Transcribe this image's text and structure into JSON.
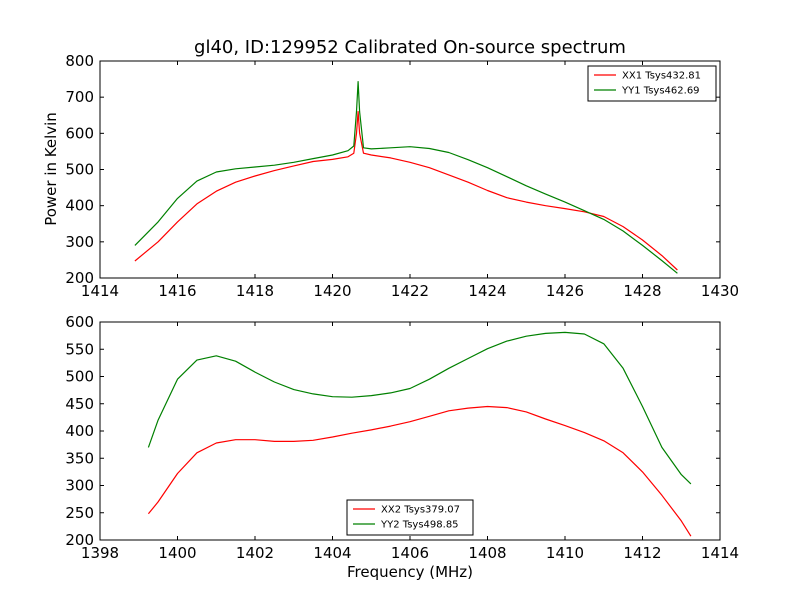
{
  "chart_data": [
    {
      "type": "line",
      "title": "gl40, ID:129952 Calibrated On-source spectrum",
      "xlabel": "",
      "ylabel": "Power in Kelvin",
      "xlim": [
        1414,
        1430
      ],
      "ylim": [
        200,
        800
      ],
      "xticks": [
        1414,
        1416,
        1418,
        1420,
        1422,
        1424,
        1426,
        1428,
        1430
      ],
      "yticks": [
        200,
        300,
        400,
        500,
        600,
        700,
        800
      ],
      "grid": false,
      "legend_position": "top-right",
      "series": [
        {
          "name": "XX1 Tsys432.81",
          "color": "#ff0000",
          "x": [
            1414.9,
            1415.5,
            1416.0,
            1416.5,
            1417.0,
            1417.5,
            1418.0,
            1418.5,
            1419.0,
            1419.5,
            1420.0,
            1420.4,
            1420.55,
            1420.62,
            1420.66,
            1420.7,
            1420.8,
            1421.0,
            1421.5,
            1422.0,
            1422.5,
            1423.0,
            1423.5,
            1424.0,
            1424.5,
            1425.0,
            1425.5,
            1426.0,
            1426.5,
            1427.0,
            1427.5,
            1428.0,
            1428.5,
            1428.9
          ],
          "y": [
            247,
            300,
            355,
            405,
            440,
            465,
            482,
            497,
            510,
            522,
            528,
            535,
            545,
            600,
            660,
            600,
            545,
            540,
            532,
            520,
            505,
            485,
            465,
            442,
            422,
            410,
            400,
            392,
            383,
            370,
            342,
            305,
            262,
            222
          ]
        },
        {
          "name": "YY1 Tsys462.69",
          "color": "#008000",
          "x": [
            1414.9,
            1415.5,
            1416.0,
            1416.5,
            1417.0,
            1417.5,
            1418.0,
            1418.5,
            1419.0,
            1419.5,
            1420.0,
            1420.4,
            1420.55,
            1420.62,
            1420.66,
            1420.7,
            1420.8,
            1421.0,
            1421.5,
            1422.0,
            1422.5,
            1423.0,
            1423.5,
            1424.0,
            1424.5,
            1425.0,
            1425.5,
            1426.0,
            1426.5,
            1427.0,
            1427.5,
            1428.0,
            1428.5,
            1428.9
          ],
          "y": [
            290,
            355,
            420,
            468,
            493,
            502,
            507,
            512,
            520,
            530,
            540,
            552,
            565,
            660,
            743,
            660,
            560,
            557,
            560,
            563,
            558,
            547,
            527,
            505,
            480,
            455,
            432,
            410,
            386,
            362,
            330,
            290,
            248,
            213
          ]
        }
      ]
    },
    {
      "type": "line",
      "title": "",
      "xlabel": "Frequency (MHz)",
      "ylabel": "",
      "xlim": [
        1398,
        1414
      ],
      "ylim": [
        200,
        600
      ],
      "xticks": [
        1398,
        1400,
        1402,
        1404,
        1406,
        1408,
        1410,
        1412,
        1414
      ],
      "yticks": [
        200,
        250,
        300,
        350,
        400,
        450,
        500,
        550,
        600
      ],
      "grid": false,
      "legend_position": "bottom-center",
      "series": [
        {
          "name": "XX2 Tsys379.07",
          "color": "#ff0000",
          "x": [
            1399.25,
            1399.5,
            1400.0,
            1400.5,
            1401.0,
            1401.5,
            1402.0,
            1402.5,
            1403.0,
            1403.5,
            1404.0,
            1404.5,
            1405.0,
            1405.5,
            1406.0,
            1406.5,
            1407.0,
            1407.5,
            1408.0,
            1408.5,
            1409.0,
            1409.5,
            1410.0,
            1410.5,
            1411.0,
            1411.5,
            1412.0,
            1412.5,
            1413.0,
            1413.25
          ],
          "y": [
            248,
            270,
            322,
            360,
            378,
            384,
            384,
            381,
            381,
            383,
            389,
            396,
            402,
            409,
            417,
            427,
            437,
            442,
            445,
            443,
            435,
            422,
            410,
            397,
            382,
            360,
            325,
            282,
            235,
            207
          ]
        },
        {
          "name": "YY2 Tsys498.85",
          "color": "#008000",
          "x": [
            1399.25,
            1399.5,
            1400.0,
            1400.5,
            1401.0,
            1401.5,
            1402.0,
            1402.5,
            1403.0,
            1403.5,
            1404.0,
            1404.5,
            1405.0,
            1405.5,
            1406.0,
            1406.5,
            1407.0,
            1407.5,
            1408.0,
            1408.5,
            1409.0,
            1409.5,
            1410.0,
            1410.5,
            1411.0,
            1411.5,
            1412.0,
            1412.5,
            1413.0,
            1413.25
          ],
          "y": [
            370,
            420,
            495,
            530,
            538,
            528,
            508,
            490,
            476,
            468,
            463,
            462,
            465,
            470,
            478,
            495,
            515,
            533,
            551,
            565,
            574,
            579,
            581,
            578,
            560,
            515,
            445,
            370,
            320,
            303
          ]
        }
      ]
    }
  ]
}
